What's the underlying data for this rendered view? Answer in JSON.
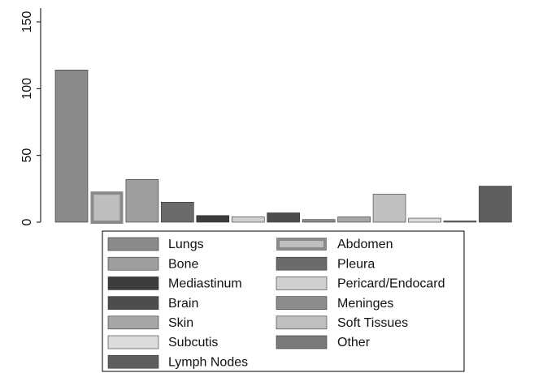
{
  "chart_data": {
    "type": "bar",
    "ylim": [
      0,
      150
    ],
    "yticks": [
      0,
      50,
      100,
      150
    ],
    "grid": false,
    "legend": "bottom",
    "series": [
      {
        "name": "Lungs",
        "color": "#8a8a8a",
        "values": [
          114
        ]
      },
      {
        "name": "Abdomen",
        "color": "#bebebe",
        "edgecolor": "#8a8a8a",
        "values": [
          23
        ]
      },
      {
        "name": "Bone",
        "color": "#9e9e9e",
        "values": [
          32
        ]
      },
      {
        "name": "Pleura",
        "color": "#6b6b6b",
        "values": [
          15
        ]
      },
      {
        "name": "Mediastinum",
        "color": "#3c3c3c",
        "values": [
          5
        ]
      },
      {
        "name": "Pericard/Endocard",
        "color": "#cfcfcf",
        "values": [
          4
        ]
      },
      {
        "name": "Brain",
        "color": "#4d4d4d",
        "values": [
          7
        ]
      },
      {
        "name": "Meninges",
        "color": "#8c8c8c",
        "values": [
          2
        ]
      },
      {
        "name": "Skin",
        "color": "#a6a6a6",
        "values": [
          4
        ]
      },
      {
        "name": "Soft Tissues",
        "color": "#c0c0c0",
        "values": [
          21
        ]
      },
      {
        "name": "Subcutis",
        "color": "#dcdcdc",
        "values": [
          3
        ]
      },
      {
        "name": "Other",
        "color": "#7a7a7a",
        "values": [
          1
        ]
      },
      {
        "name": "Lymph Nodes",
        "color": "#5e5e5e",
        "values": [
          27
        ]
      }
    ]
  }
}
